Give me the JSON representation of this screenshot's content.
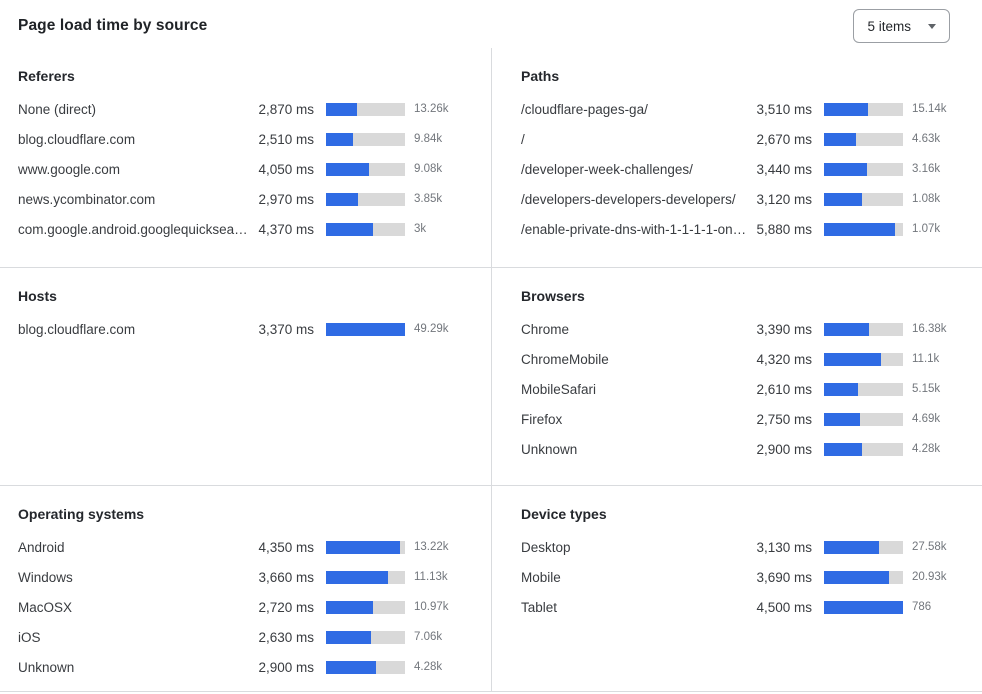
{
  "header": {
    "title": "Page load time by source",
    "items_dropdown": {
      "value": "5 items"
    }
  },
  "colors": {
    "bar_fill": "#2f6be4",
    "bar_track": "#d9d9d9",
    "divider": "#d9dbde"
  },
  "chart_data": [
    {
      "type": "bar",
      "title": "Referers",
      "unit": "ms",
      "rows": [
        {
          "label": "None (direct)",
          "ms": 2870,
          "ms_display": "2,870 ms",
          "count": "13.26k",
          "bar_pct": 39
        },
        {
          "label": "blog.cloudflare.com",
          "ms": 2510,
          "ms_display": "2,510 ms",
          "count": "9.84k",
          "bar_pct": 34
        },
        {
          "label": "www.google.com",
          "ms": 4050,
          "ms_display": "4,050 ms",
          "count": "9.08k",
          "bar_pct": 55
        },
        {
          "label": "news.ycombinator.com",
          "ms": 2970,
          "ms_display": "2,970 ms",
          "count": "3.85k",
          "bar_pct": 40
        },
        {
          "label": "com.google.android.googlequicksearc…",
          "ms": 4370,
          "ms_display": "4,370 ms",
          "count": "3k",
          "bar_pct": 60
        }
      ]
    },
    {
      "type": "bar",
      "title": "Paths",
      "unit": "ms",
      "rows": [
        {
          "label": "/cloudflare-pages-ga/",
          "ms": 3510,
          "ms_display": "3,510 ms",
          "count": "15.14k",
          "bar_pct": 56
        },
        {
          "label": "/",
          "ms": 2670,
          "ms_display": "2,670 ms",
          "count": "4.63k",
          "bar_pct": 41
        },
        {
          "label": "/developer-week-challenges/",
          "ms": 3440,
          "ms_display": "3,440 ms",
          "count": "3.16k",
          "bar_pct": 54
        },
        {
          "label": "/developers-developers-developers/",
          "ms": 3120,
          "ms_display": "3,120 ms",
          "count": "1.08k",
          "bar_pct": 48
        },
        {
          "label": "/enable-private-dns-with-1-1-1-1-on-…",
          "ms": 5880,
          "ms_display": "5,880 ms",
          "count": "1.07k",
          "bar_pct": 90
        }
      ]
    },
    {
      "type": "bar",
      "title": "Hosts",
      "unit": "ms",
      "rows": [
        {
          "label": "blog.cloudflare.com",
          "ms": 3370,
          "ms_display": "3,370 ms",
          "count": "49.29k",
          "bar_pct": 100
        }
      ]
    },
    {
      "type": "bar",
      "title": "Browsers",
      "unit": "ms",
      "rows": [
        {
          "label": "Chrome",
          "ms": 3390,
          "ms_display": "3,390 ms",
          "count": "16.38k",
          "bar_pct": 57
        },
        {
          "label": "ChromeMobile",
          "ms": 4320,
          "ms_display": "4,320 ms",
          "count": "11.1k",
          "bar_pct": 72
        },
        {
          "label": "MobileSafari",
          "ms": 2610,
          "ms_display": "2,610 ms",
          "count": "5.15k",
          "bar_pct": 43
        },
        {
          "label": "Firefox",
          "ms": 2750,
          "ms_display": "2,750 ms",
          "count": "4.69k",
          "bar_pct": 45
        },
        {
          "label": "Unknown",
          "ms": 2900,
          "ms_display": "2,900 ms",
          "count": "4.28k",
          "bar_pct": 48
        }
      ]
    },
    {
      "type": "bar",
      "title": "Operating systems",
      "unit": "ms",
      "rows": [
        {
          "label": "Android",
          "ms": 4350,
          "ms_display": "4,350 ms",
          "count": "13.22k",
          "bar_pct": 94
        },
        {
          "label": "Windows",
          "ms": 3660,
          "ms_display": "3,660 ms",
          "count": "11.13k",
          "bar_pct": 79
        },
        {
          "label": "MacOSX",
          "ms": 2720,
          "ms_display": "2,720 ms",
          "count": "10.97k",
          "bar_pct": 59
        },
        {
          "label": "iOS",
          "ms": 2630,
          "ms_display": "2,630 ms",
          "count": "7.06k",
          "bar_pct": 57
        },
        {
          "label": "Unknown",
          "ms": 2900,
          "ms_display": "2,900 ms",
          "count": "4.28k",
          "bar_pct": 63
        }
      ]
    },
    {
      "type": "bar",
      "title": "Device types",
      "unit": "ms",
      "rows": [
        {
          "label": "Desktop",
          "ms": 3130,
          "ms_display": "3,130 ms",
          "count": "27.58k",
          "bar_pct": 70
        },
        {
          "label": "Mobile",
          "ms": 3690,
          "ms_display": "3,690 ms",
          "count": "20.93k",
          "bar_pct": 82
        },
        {
          "label": "Tablet",
          "ms": 4500,
          "ms_display": "4,500 ms",
          "count": "786",
          "bar_pct": 100
        }
      ]
    }
  ]
}
